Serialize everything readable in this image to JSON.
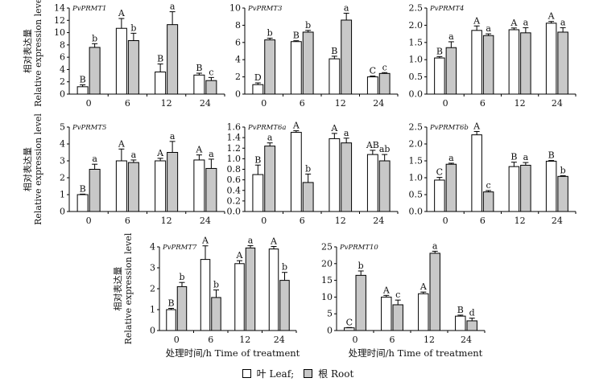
{
  "colors": {
    "leaf": "#ffffff",
    "root": "#c8c8c8",
    "axis": "#000000"
  },
  "legend": {
    "leaf": "叶 Leaf;",
    "root": "根 Root"
  },
  "chart_data": [
    {
      "type": "bar",
      "title": "PvPRMT1",
      "categories": [
        "0",
        "6",
        "12",
        "24"
      ],
      "ylabel_cn": "相对表达量",
      "ylabel_en": "Relative expression level",
      "xlabel": "",
      "ylim": [
        0,
        14
      ],
      "yticks": [
        0,
        2,
        4,
        6,
        8,
        10,
        12,
        14
      ],
      "series": [
        {
          "name": "Leaf",
          "values": [
            1.2,
            10.7,
            3.6,
            3.1
          ],
          "errors": [
            0.3,
            1.6,
            1.3,
            0.3
          ],
          "letters": [
            "B",
            "A",
            "B",
            "B"
          ]
        },
        {
          "name": "Root",
          "values": [
            7.6,
            8.7,
            11.3,
            2.2
          ],
          "errors": [
            0.6,
            1.2,
            2.1,
            0.5
          ],
          "letters": [
            "b",
            "b",
            "a",
            "c"
          ]
        }
      ]
    },
    {
      "type": "bar",
      "title": "PvPRMT3",
      "categories": [
        "0",
        "6",
        "12",
        "24"
      ],
      "ylabel_cn": "",
      "ylabel_en": "",
      "xlabel": "",
      "ylim": [
        0,
        10
      ],
      "yticks": [
        0,
        2,
        4,
        6,
        8,
        10
      ],
      "series": [
        {
          "name": "Leaf",
          "values": [
            1.1,
            6.1,
            4.1,
            2.0
          ],
          "errors": [
            0.2,
            0.1,
            0.3,
            0.1
          ],
          "letters": [
            "D",
            "B",
            "B",
            "C"
          ]
        },
        {
          "name": "Root",
          "values": [
            6.3,
            7.2,
            8.6,
            2.4
          ],
          "errors": [
            0.2,
            0.2,
            0.8,
            0.1
          ],
          "letters": [
            "b",
            "b",
            "a",
            "c"
          ]
        }
      ]
    },
    {
      "type": "bar",
      "title": "PvPRMT4",
      "categories": [
        "0",
        "6",
        "12",
        "24"
      ],
      "ylabel_cn": "",
      "ylabel_en": "",
      "xlabel": "",
      "ylim": [
        0,
        2.5
      ],
      "yticks": [
        0,
        0.5,
        1.0,
        1.5,
        2.0,
        2.5
      ],
      "series": [
        {
          "name": "Leaf",
          "values": [
            1.05,
            1.85,
            1.87,
            2.06
          ],
          "errors": [
            0.04,
            0.13,
            0.05,
            0.05
          ],
          "letters": [
            "B",
            "A",
            "A",
            "A"
          ]
        },
        {
          "name": "Root",
          "values": [
            1.35,
            1.7,
            1.78,
            1.8
          ],
          "errors": [
            0.17,
            0.05,
            0.15,
            0.13
          ],
          "letters": [
            "a",
            "a",
            "a",
            "a"
          ]
        }
      ]
    },
    {
      "type": "bar",
      "title": "PvPRMT5",
      "categories": [
        "0",
        "6",
        "12",
        "24"
      ],
      "ylabel_cn": "相对表达量",
      "ylabel_en": "Relative expression level",
      "xlabel": "",
      "ylim": [
        0,
        5
      ],
      "yticks": [
        0,
        1,
        2,
        3,
        4,
        5
      ],
      "series": [
        {
          "name": "Leaf",
          "values": [
            1.0,
            3.0,
            3.0,
            3.05
          ],
          "errors": [
            0.03,
            0.7,
            0.15,
            0.3
          ],
          "letters": [
            "B",
            "A",
            "A",
            "A"
          ]
        },
        {
          "name": "Root",
          "values": [
            2.5,
            2.9,
            3.5,
            2.55
          ],
          "errors": [
            0.3,
            0.15,
            0.65,
            0.55
          ],
          "letters": [
            "a",
            "a",
            "a",
            "a"
          ]
        }
      ]
    },
    {
      "type": "bar",
      "title": "PvPRMT6a",
      "categories": [
        "0",
        "6",
        "12",
        "24"
      ],
      "ylabel_cn": "",
      "ylabel_en": "",
      "xlabel": "",
      "ylim": [
        0,
        1.6
      ],
      "yticks": [
        0,
        0.2,
        0.4,
        0.6,
        0.8,
        1.0,
        1.2,
        1.4,
        1.6
      ],
      "series": [
        {
          "name": "Leaf",
          "values": [
            0.7,
            1.5,
            1.38,
            1.08
          ],
          "errors": [
            0.18,
            0.03,
            0.1,
            0.08
          ],
          "letters": [
            "B",
            "A",
            "A",
            "AB"
          ]
        },
        {
          "name": "Root",
          "values": [
            1.24,
            0.55,
            1.3,
            0.96
          ],
          "errors": [
            0.06,
            0.16,
            0.09,
            0.12
          ],
          "letters": [
            "a",
            "b",
            "a",
            "ab"
          ]
        }
      ]
    },
    {
      "type": "bar",
      "title": "PvPRMT6b",
      "categories": [
        "0",
        "6",
        "12",
        "24"
      ],
      "ylabel_cn": "",
      "ylabel_en": "",
      "xlabel": "",
      "ylim": [
        0,
        2.5
      ],
      "yticks": [
        0,
        0.5,
        1.0,
        1.5,
        2.0,
        2.5
      ],
      "series": [
        {
          "name": "Leaf",
          "values": [
            0.93,
            2.27,
            1.33,
            1.49
          ],
          "errors": [
            0.08,
            0.1,
            0.13,
            0.02
          ],
          "letters": [
            "C",
            "A",
            "B",
            "B"
          ]
        },
        {
          "name": "Root",
          "values": [
            1.4,
            0.58,
            1.37,
            1.04
          ],
          "errors": [
            0.03,
            0.04,
            0.08,
            0.02
          ],
          "letters": [
            "a",
            "c",
            "a",
            "b"
          ]
        }
      ]
    },
    {
      "type": "bar",
      "title": "PvPRMT7",
      "categories": [
        "0",
        "6",
        "12",
        "24"
      ],
      "ylabel_cn": "相对表达量",
      "ylabel_en": "Relative expression level",
      "xlabel": "处理时间/h   Time of treatment",
      "ylim": [
        0,
        4
      ],
      "yticks": [
        0,
        1,
        2,
        3,
        4
      ],
      "series": [
        {
          "name": "Leaf",
          "values": [
            1.0,
            3.4,
            3.2,
            3.9
          ],
          "errors": [
            0.06,
            0.65,
            0.14,
            0.12
          ],
          "letters": [
            "B",
            "A",
            "A",
            "A"
          ]
        },
        {
          "name": "Root",
          "values": [
            2.1,
            1.58,
            3.95,
            2.4
          ],
          "errors": [
            0.2,
            0.36,
            0.11,
            0.38
          ],
          "letters": [
            "b",
            "b",
            "a",
            "b"
          ]
        }
      ]
    },
    {
      "type": "bar",
      "title": "PvPRMT10",
      "categories": [
        "0",
        "6",
        "12",
        "24"
      ],
      "ylabel_cn": "",
      "ylabel_en": "",
      "xlabel": "处理时间/h   Time of treatment",
      "ylim": [
        0,
        25
      ],
      "yticks": [
        0,
        5,
        10,
        15,
        20,
        25
      ],
      "series": [
        {
          "name": "Leaf",
          "values": [
            0.8,
            10.0,
            11.0,
            4.3
          ],
          "errors": [
            0.1,
            0.5,
            0.5,
            0.3
          ],
          "letters": [
            "C",
            "A",
            "A",
            "B"
          ]
        },
        {
          "name": "Root",
          "values": [
            16.5,
            7.7,
            23.1,
            2.9
          ],
          "errors": [
            1.3,
            1.4,
            0.6,
            0.8
          ],
          "letters": [
            "b",
            "c",
            "a",
            "d"
          ]
        }
      ]
    }
  ]
}
